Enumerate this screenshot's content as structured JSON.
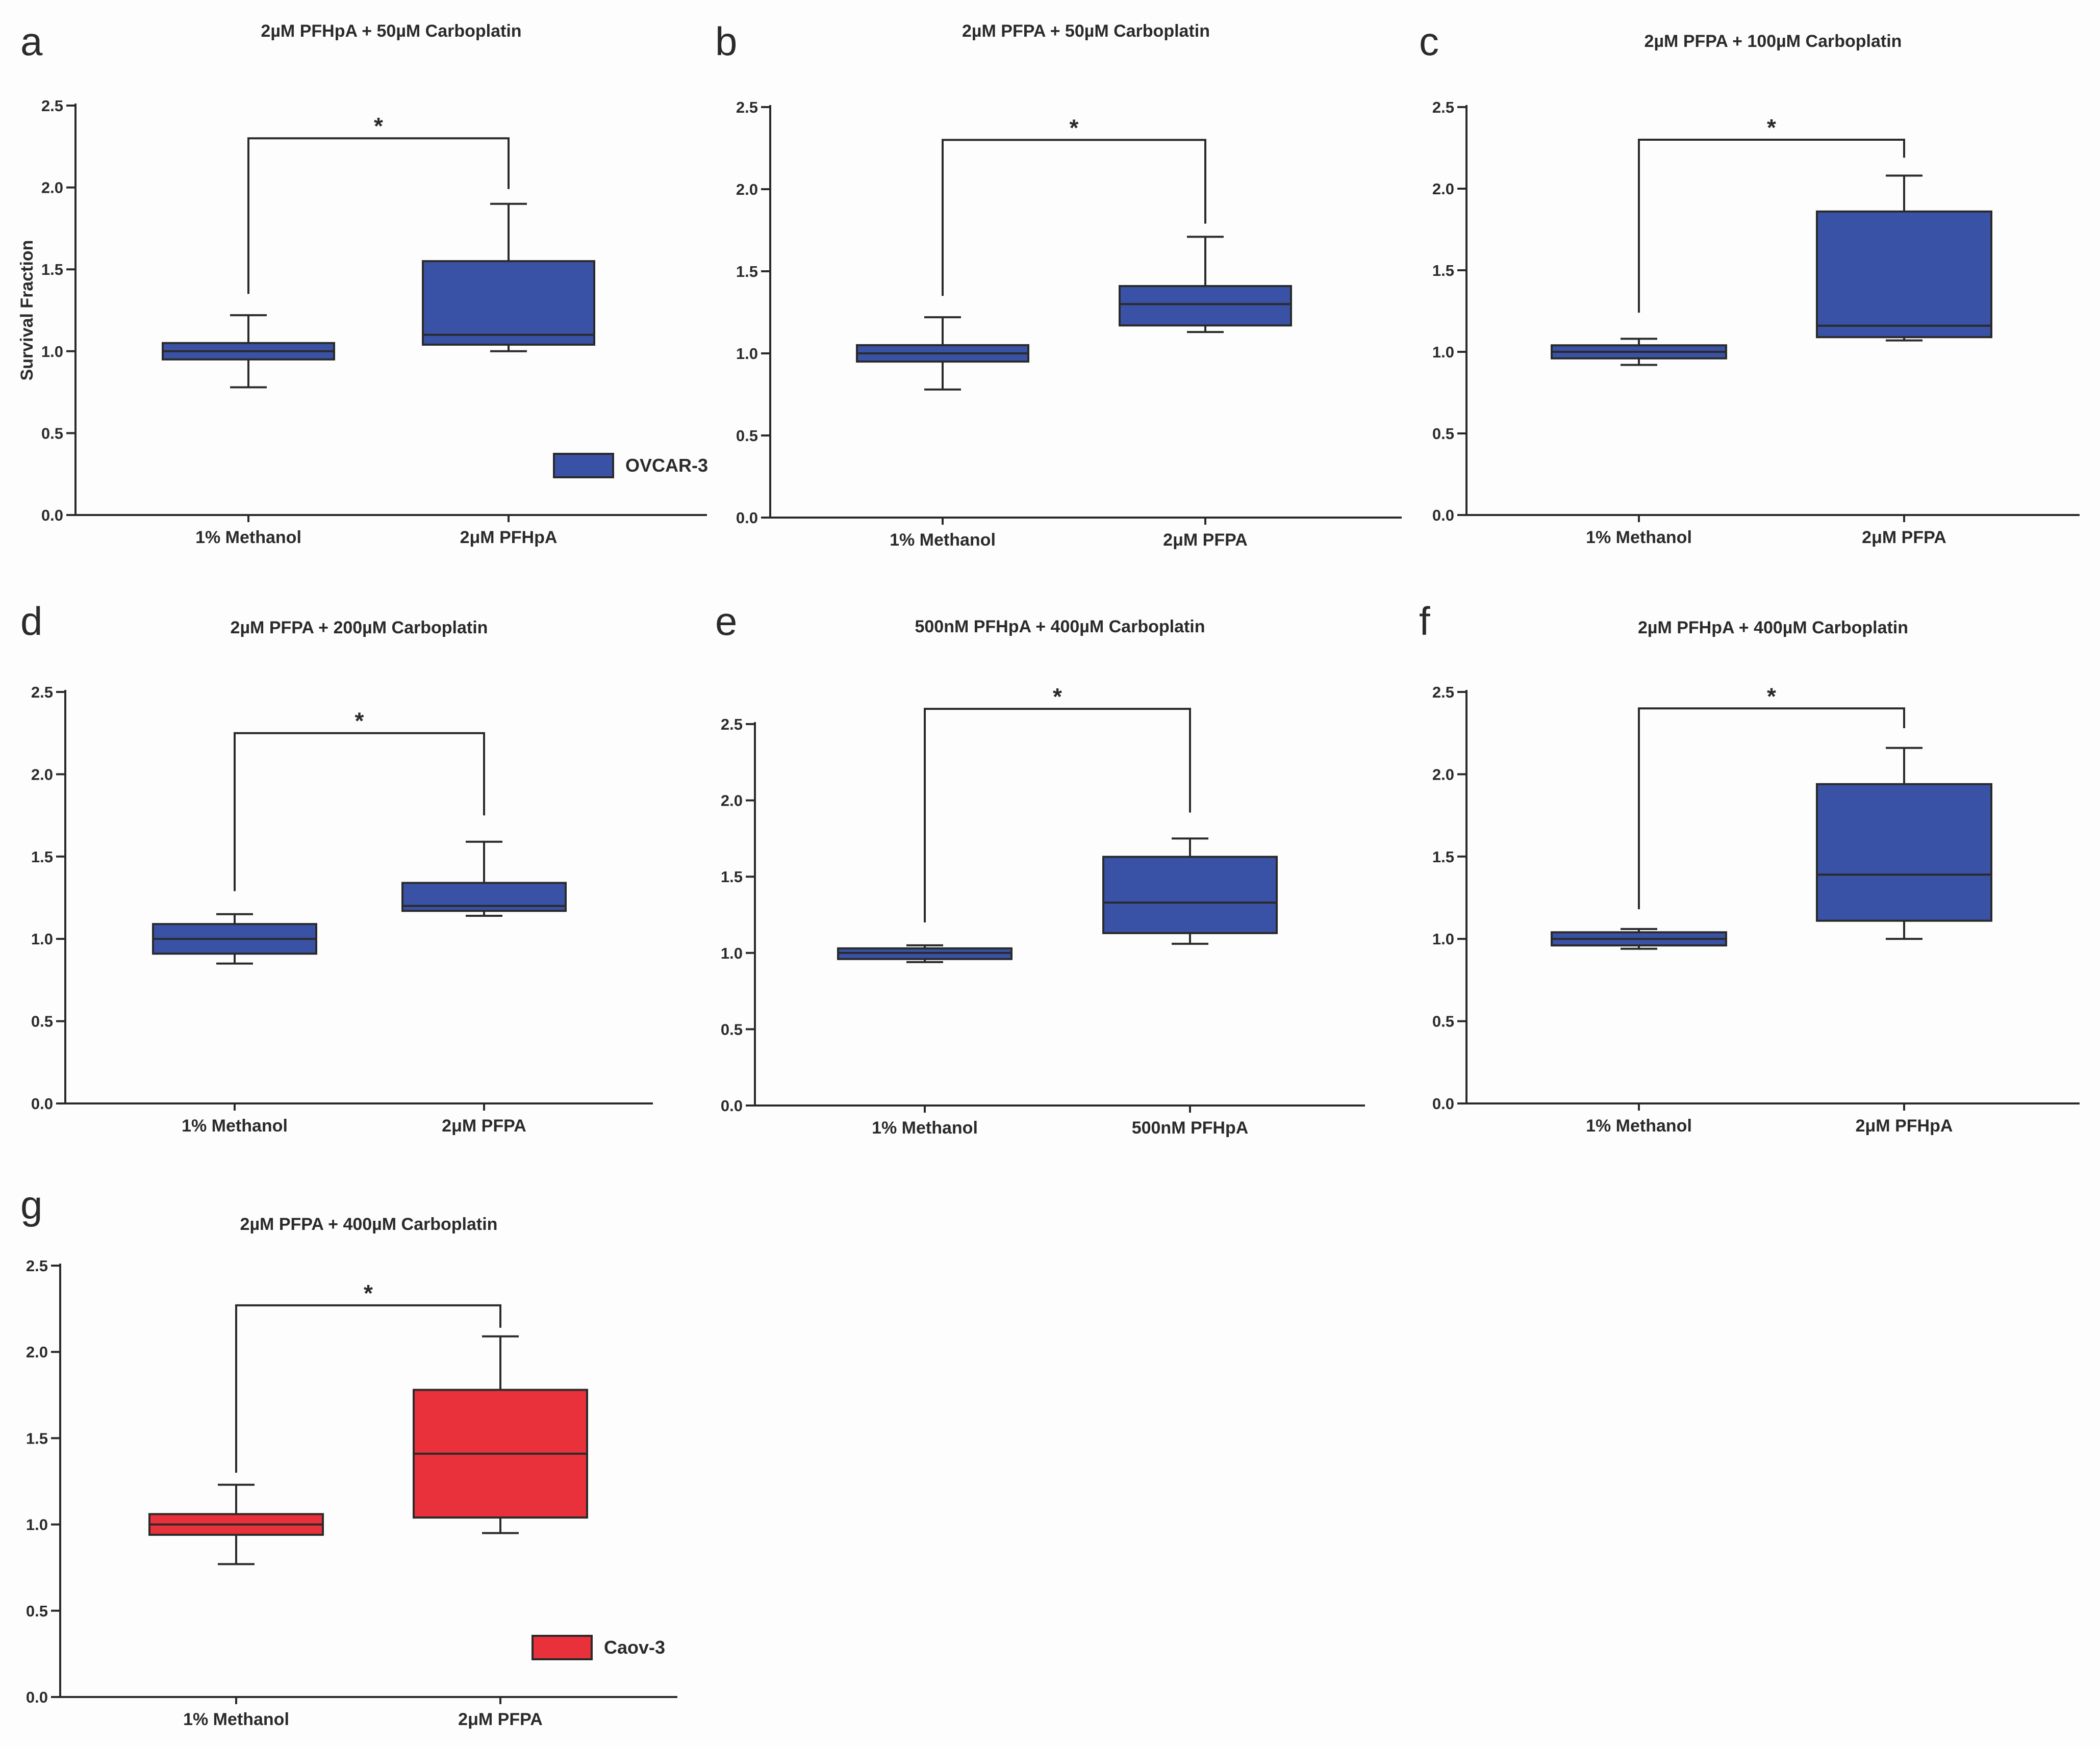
{
  "colors": {
    "ovcar": "#3a52a6",
    "caov": "#e8313a",
    "axis": "#2a2a2a",
    "background": "#fdfdfd"
  },
  "chart_data": [
    {
      "panel": "a",
      "type": "box",
      "title": "2µM PFHpA + 50µM Carboplatin",
      "ylabel": "Survival Fraction",
      "ylim": [
        0,
        2.5
      ],
      "yticks": [
        "0.0",
        "0.5",
        "1.0",
        "1.5",
        "2.0",
        "2.5"
      ],
      "categories": [
        "1% Methanol",
        "2μM PFHpA"
      ],
      "color": "#3a52a6",
      "boxes": [
        {
          "min": 0.78,
          "q1": 0.95,
          "median": 1.0,
          "q3": 1.05,
          "max": 1.22
        },
        {
          "min": 1.0,
          "q1": 1.04,
          "median": 1.1,
          "q3": 1.55,
          "max": 1.9
        }
      ],
      "significance": {
        "label": "*",
        "level": 2.3,
        "left_end": 1.35,
        "right_end": 1.99
      },
      "legend": {
        "label": "OVCAR-3",
        "position": "bottom-right"
      }
    },
    {
      "panel": "b",
      "type": "box",
      "title": "2µM PFPA + 50µM Carboplatin",
      "ylabel": "",
      "ylim": [
        0,
        2.5
      ],
      "yticks": [
        "0.0",
        "0.5",
        "1.0",
        "1.5",
        "2.0",
        "2.5"
      ],
      "categories": [
        "1% Methanol",
        "2μM PFPA"
      ],
      "color": "#3a52a6",
      "boxes": [
        {
          "min": 0.78,
          "q1": 0.95,
          "median": 1.0,
          "q3": 1.05,
          "max": 1.22
        },
        {
          "min": 1.13,
          "q1": 1.17,
          "median": 1.3,
          "q3": 1.41,
          "max": 1.71
        }
      ],
      "significance": {
        "label": "*",
        "level": 2.3,
        "left_end": 1.35,
        "right_end": 1.79
      }
    },
    {
      "panel": "c",
      "type": "box",
      "title": "2µM PFPA + 100µM Carboplatin",
      "ylabel": "",
      "ylim": [
        0,
        2.5
      ],
      "yticks": [
        "0.0",
        "0.5",
        "1.0",
        "1.5",
        "2.0",
        "2.5"
      ],
      "categories": [
        "1% Methanol",
        "2μM PFPA"
      ],
      "color": "#3a52a6",
      "boxes": [
        {
          "min": 0.92,
          "q1": 0.96,
          "median": 1.0,
          "q3": 1.04,
          "max": 1.08
        },
        {
          "min": 1.07,
          "q1": 1.09,
          "median": 1.16,
          "q3": 1.86,
          "max": 2.08
        }
      ],
      "significance": {
        "label": "*",
        "level": 2.3,
        "left_end": 1.24,
        "right_end": 2.19
      }
    },
    {
      "panel": "d",
      "type": "box",
      "title": "2µM PFPA + 200µM Carboplatin",
      "ylabel": "",
      "ylim": [
        0,
        2.5
      ],
      "yticks": [
        "0.0",
        "0.5",
        "1.0",
        "1.5",
        "2.0",
        "2.5"
      ],
      "categories": [
        "1% Methanol",
        "2μM PFPA"
      ],
      "color": "#3a52a6",
      "boxes": [
        {
          "min": 0.85,
          "q1": 0.91,
          "median": 1.0,
          "q3": 1.09,
          "max": 1.15
        },
        {
          "min": 1.14,
          "q1": 1.17,
          "median": 1.2,
          "q3": 1.34,
          "max": 1.59
        }
      ],
      "significance": {
        "label": "*",
        "level": 2.25,
        "left_end": 1.29,
        "right_end": 1.75
      }
    },
    {
      "panel": "e",
      "type": "box",
      "title": "500nM PFHpA + 400µM Carboplatin",
      "ylabel": "",
      "ylim": [
        0,
        2.5
      ],
      "yticks": [
        "0.0",
        "0.5",
        "1.0",
        "1.5",
        "2.0",
        "2.5"
      ],
      "categories": [
        "1% Methanol",
        "500nM PFHpA"
      ],
      "color": "#3a52a6",
      "boxes": [
        {
          "min": 0.94,
          "q1": 0.96,
          "median": 1.0,
          "q3": 1.03,
          "max": 1.05
        },
        {
          "min": 1.06,
          "q1": 1.13,
          "median": 1.33,
          "q3": 1.63,
          "max": 1.75
        }
      ],
      "significance": {
        "label": "*",
        "level": 2.6,
        "left_end": 1.2,
        "right_end": 1.92
      }
    },
    {
      "panel": "f",
      "type": "box",
      "title": "2µM PFHpA + 400µM Carboplatin",
      "ylabel": "",
      "ylim": [
        0,
        2.5
      ],
      "yticks": [
        "0.0",
        "0.5",
        "1.0",
        "1.5",
        "2.0",
        "2.5"
      ],
      "categories": [
        "1% Methanol",
        "2μM PFHpA"
      ],
      "color": "#3a52a6",
      "boxes": [
        {
          "min": 0.94,
          "q1": 0.96,
          "median": 1.0,
          "q3": 1.04,
          "max": 1.06
        },
        {
          "min": 1.0,
          "q1": 1.11,
          "median": 1.39,
          "q3": 1.94,
          "max": 2.16
        }
      ],
      "significance": {
        "label": "*",
        "level": 2.4,
        "left_end": 1.18,
        "right_end": 2.28
      }
    },
    {
      "panel": "g",
      "type": "box",
      "title": "2µM PFPA + 400µM Carboplatin",
      "ylabel": "",
      "ylim": [
        0,
        2.5
      ],
      "yticks": [
        "0.0",
        "0.5",
        "1.0",
        "1.5",
        "2.0",
        "2.5"
      ],
      "categories": [
        "1% Methanol",
        "2μM PFPA"
      ],
      "color": "#e8313a",
      "boxes": [
        {
          "min": 0.77,
          "q1": 0.94,
          "median": 1.0,
          "q3": 1.06,
          "max": 1.23
        },
        {
          "min": 0.95,
          "q1": 1.04,
          "median": 1.41,
          "q3": 1.78,
          "max": 2.09
        }
      ],
      "significance": {
        "label": "*",
        "level": 2.27,
        "left_end": 1.3,
        "right_end": 2.14
      },
      "legend": {
        "label": "Caov-3",
        "position": "bottom-right"
      }
    }
  ]
}
